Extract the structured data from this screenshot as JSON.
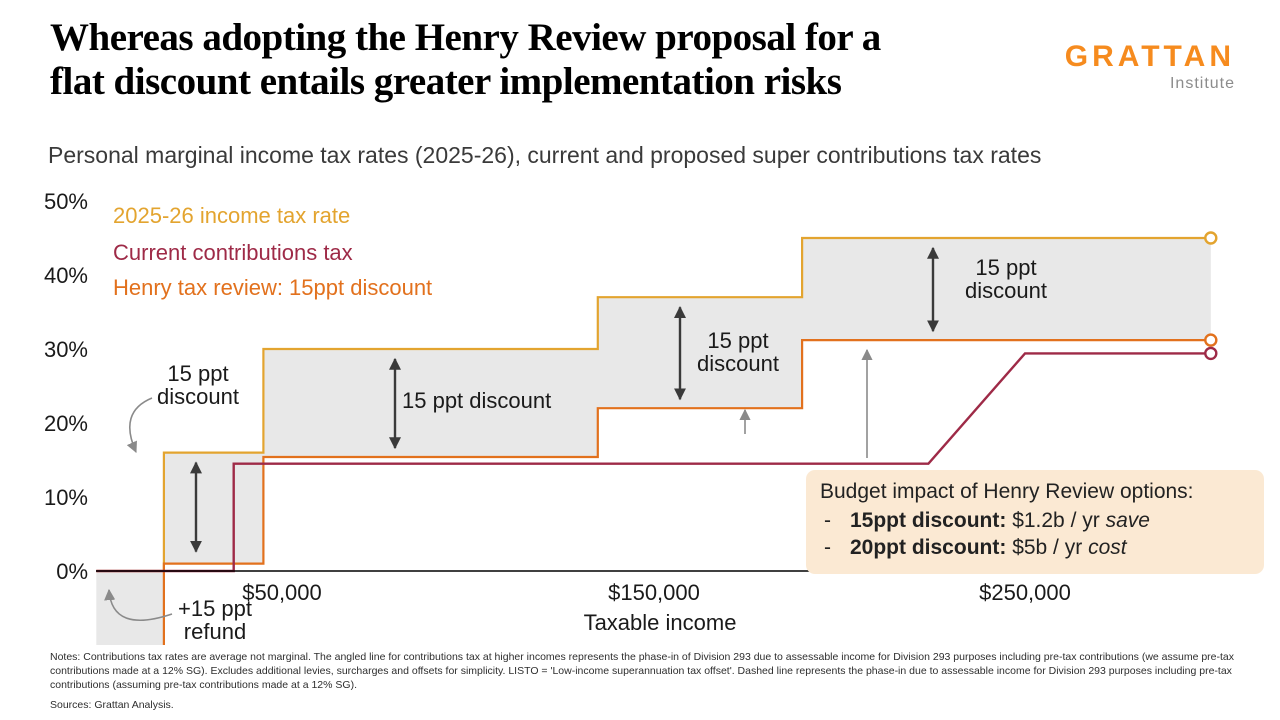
{
  "header": {
    "title_line1": "Whereas adopting the Henry Review proposal for a",
    "title_line2": "flat discount entails greater implementation risks",
    "logo_primary": "GRATTAN",
    "logo_secondary": "Institute"
  },
  "subtitle": "Personal marginal income tax rates (2025-26), current and proposed super contributions tax rates",
  "legend": {
    "income_tax": {
      "label": "2025-26 income tax rate",
      "color": "#E3A42F"
    },
    "current_contrib": {
      "label": "Current contributions tax",
      "color": "#9E2A47"
    },
    "henry": {
      "label": "Henry tax review: 15ppt discount",
      "color": "#E2711D"
    }
  },
  "annotations": {
    "band1": {
      "line1": "15 ppt",
      "line2": "discount"
    },
    "band2": "15 ppt discount",
    "band3": {
      "line1": "15 ppt",
      "line2": "discount"
    },
    "band4": {
      "line1": "15 ppt",
      "line2": "discount"
    },
    "refund": {
      "line1": "+15 ppt",
      "line2": "refund"
    }
  },
  "budget_box": {
    "title": "Budget impact of Henry Review options:",
    "items": [
      {
        "bullet": "-",
        "label": "15ppt discount:",
        "value": "$1.2b / yr",
        "note": "save"
      },
      {
        "bullet": "-",
        "label": "20ppt discount:",
        "value": "$5b / yr",
        "note": "cost"
      }
    ]
  },
  "notes": "Notes: Contributions tax rates are average not marginal. The angled line for contributions tax at higher incomes represents the phase-in of Division 293 due to assessable income for Division 293 purposes including pre-tax contributions (we assume pre-tax contributions made at a 12% SG). Excludes additional levies, surcharges and offsets for simplicity. LISTO = 'Low-income superannuation tax offset'. Dashed line represents the phase-in due to assessable income for Division 293 purposes including pre-tax contributions (assuming pre-tax contributions made at a 12% SG).",
  "sources": "Sources: Grattan Analysis.",
  "chart_data": {
    "type": "line",
    "title": "Personal marginal income tax rates (2025-26), current and proposed super contributions tax rates",
    "xlabel": "Taxable income",
    "ylabel": "",
    "xlim": [
      0,
      300000
    ],
    "ylim": [
      -15,
      50
    ],
    "grid": false,
    "legend_position": "top-left-inside",
    "x_ticks": [
      {
        "value": 50000,
        "label": "$50,000"
      },
      {
        "value": 150000,
        "label": "$150,000"
      },
      {
        "value": 250000,
        "label": "$250,000"
      }
    ],
    "y_ticks": [
      {
        "value": 0,
        "label": "0%"
      },
      {
        "value": 10,
        "label": "10%"
      },
      {
        "value": 20,
        "label": "20%"
      },
      {
        "value": 30,
        "label": "30%"
      },
      {
        "value": 40,
        "label": "40%"
      },
      {
        "value": 50,
        "label": "50%"
      }
    ],
    "series": [
      {
        "id": "income_tax",
        "name": "2025-26 income tax rate",
        "color": "#E3A42F",
        "width": 2.2,
        "type": "step",
        "points": [
          [
            0,
            0
          ],
          [
            18200,
            0
          ],
          [
            18200,
            16
          ],
          [
            45000,
            16
          ],
          [
            45000,
            30
          ],
          [
            135000,
            30
          ],
          [
            135000,
            37
          ],
          [
            190000,
            37
          ],
          [
            190000,
            45
          ],
          [
            300000,
            45
          ]
        ]
      },
      {
        "id": "henry",
        "name": "Henry tax review: 15ppt discount",
        "color": "#E2711D",
        "width": 2.2,
        "type": "step",
        "points": [
          [
            0,
            -15
          ],
          [
            18200,
            -15
          ],
          [
            18200,
            1
          ],
          [
            45000,
            1
          ],
          [
            45000,
            15
          ],
          [
            135000,
            15
          ],
          [
            135000,
            22
          ],
          [
            190000,
            22
          ],
          [
            190000,
            30
          ],
          [
            300000,
            30
          ]
        ]
      },
      {
        "id": "current",
        "name": "Current contributions tax",
        "color": "#9E2A47",
        "width": 2.4,
        "type": "line",
        "points": [
          [
            0,
            0
          ],
          [
            37000,
            0
          ],
          [
            37000,
            15
          ],
          [
            224000,
            15
          ],
          [
            250000,
            30
          ],
          [
            300000,
            30
          ]
        ]
      }
    ],
    "band": {
      "upper": "income_tax",
      "lower": "henry",
      "color": "#E8E8E8"
    },
    "visual_offsets": {
      "henry": {
        "15": 0.4,
        "30": 1.2
      },
      "current": {
        "15": -0.5,
        "30": -0.6
      }
    },
    "discount_arrows": [
      {
        "x": 196,
        "from": 1.4,
        "to": 16
      },
      {
        "x": 395,
        "from": 15.4,
        "to": 30
      },
      {
        "x": 680,
        "from": 22,
        "to": 37
      },
      {
        "x": 933,
        "from": 31.2,
        "to": 45
      }
    ],
    "increase_arrows": [
      {
        "x": 745,
        "y1": 434,
        "y2": 410
      },
      {
        "x": 867,
        "y1": 458,
        "y2": 350
      }
    ],
    "leader_curves": [
      "M 152 398 Q 118 412 136 452",
      "M 172 614 Q 112 634 109 590"
    ]
  }
}
